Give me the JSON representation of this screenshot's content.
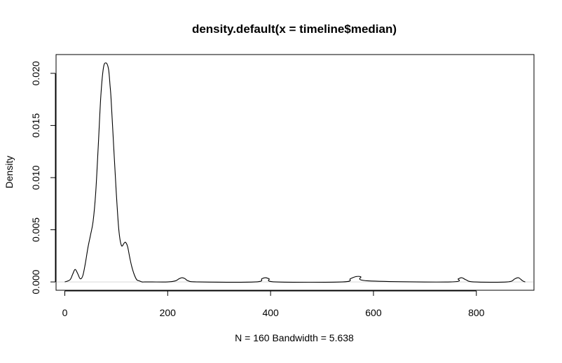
{
  "chart_data": {
    "type": "line",
    "title": "density.default(x = timeline$median)",
    "xlabel": "N = 160   Bandwidth = 5.638",
    "ylabel": "Density",
    "xlim": [
      -17,
      912
    ],
    "ylim": [
      -0.0008,
      0.0218
    ],
    "x_ticks": [
      0,
      200,
      400,
      600,
      800
    ],
    "x_tick_labels": [
      "0",
      "200",
      "400",
      "600",
      "800"
    ],
    "y_ticks": [
      0.0,
      0.005,
      0.01,
      0.015,
      0.02
    ],
    "y_tick_labels": [
      "0.000",
      "0.005",
      "0.010",
      "0.015",
      "0.020"
    ],
    "grid": false,
    "zero_line": true,
    "series": [
      {
        "x": [
          0,
          10,
          15,
          20,
          25,
          30,
          35,
          40,
          45,
          50,
          55,
          60,
          65,
          70,
          75,
          80,
          85,
          88,
          90,
          95,
          100,
          105,
          110,
          115,
          118,
          122,
          126,
          130,
          135,
          140,
          145,
          150,
          155,
          160,
          170,
          200,
          215,
          222,
          228,
          234,
          240,
          260,
          370,
          383,
          390,
          397,
          410,
          540,
          555,
          565,
          575,
          590,
          750,
          765,
          772,
          780,
          795,
          860,
          875,
          882,
          890,
          895
        ],
        "y": [
          0.0,
          0.0002,
          0.0007,
          0.0012,
          0.0008,
          0.0003,
          0.0006,
          0.0018,
          0.0033,
          0.0045,
          0.0058,
          0.0085,
          0.013,
          0.0178,
          0.0205,
          0.021,
          0.0204,
          0.0188,
          0.0175,
          0.013,
          0.0086,
          0.005,
          0.0035,
          0.0037,
          0.0038,
          0.0034,
          0.0024,
          0.0015,
          0.0007,
          0.0002,
          0.0001,
          0.0,
          0.0,
          0.0,
          0.0,
          0.0,
          0.0001,
          0.0003,
          0.0004,
          0.0003,
          0.0001,
          0.0,
          0.0,
          0.0003,
          0.0004,
          0.0003,
          0.0,
          0.0,
          0.0003,
          0.0005,
          0.0005,
          0.0001,
          0.0,
          0.0003,
          0.0004,
          0.0002,
          0.0,
          0.0,
          0.0003,
          0.0004,
          0.0001,
          0.0
        ]
      }
    ]
  }
}
